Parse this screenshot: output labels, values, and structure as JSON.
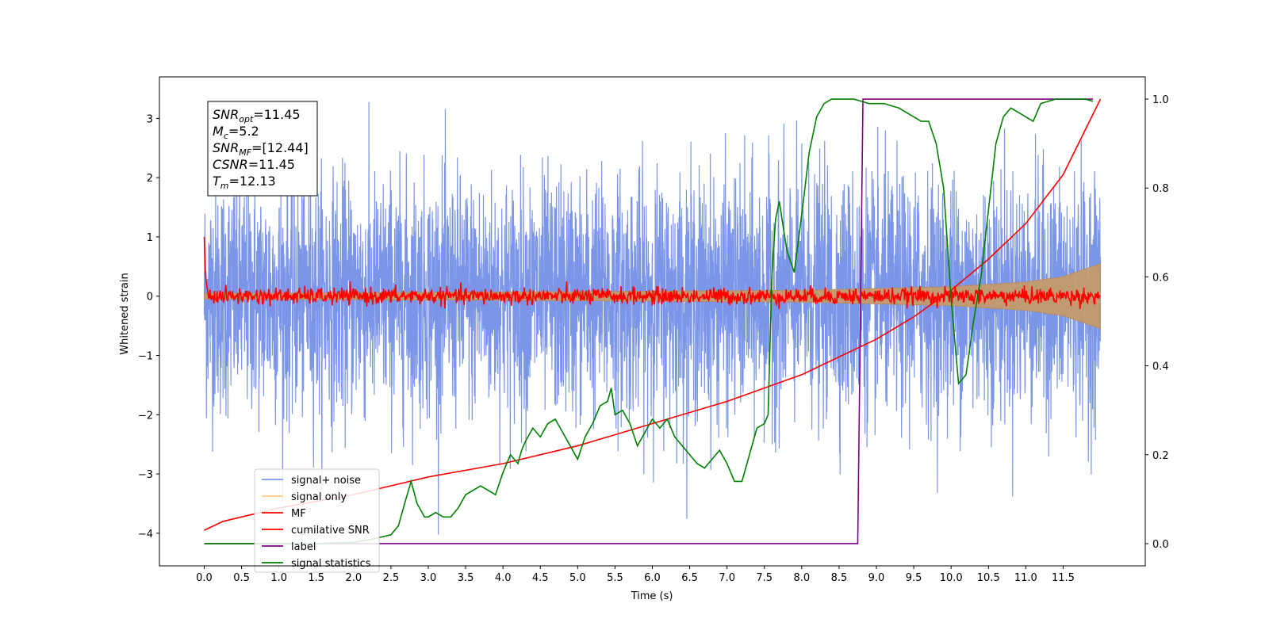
{
  "chart_data": {
    "type": "line",
    "xlabel": "Time (s)",
    "ylabel": "Whitened strain",
    "xlim": [
      -0.6,
      12.6
    ],
    "ylim": [
      -4.55,
      3.7
    ],
    "y2lim": [
      -0.05,
      1.05
    ],
    "x_ticks": [
      "0.0",
      "0.5",
      "1.0",
      "1.5",
      "2.0",
      "2.5",
      "3.0",
      "3.5",
      "4.0",
      "4.5",
      "5.0",
      "5.5",
      "6.0",
      "6.5",
      "7.0",
      "7.5",
      "8.0",
      "8.5",
      "9.0",
      "9.5",
      "10.0",
      "10.5",
      "11.0",
      "11.5"
    ],
    "y_ticks": [
      "3",
      "2",
      "1",
      "0",
      "−1",
      "−2",
      "−3",
      "−4"
    ],
    "y2_ticks": [
      "1.0",
      "0.8",
      "0.6",
      "0.4",
      "0.2",
      "0.0"
    ],
    "annotation": {
      "lines": [
        {
          "sym": "SNR",
          "sub": "opt",
          "val": "=11.45"
        },
        {
          "sym": "M",
          "sub": "c",
          "val": "=5.2"
        },
        {
          "sym": "SNR",
          "sub": "MF",
          "val": "=[12.44]"
        },
        {
          "sym": "CSNR",
          "sub": "",
          "val": "=11.45"
        },
        {
          "sym": "T",
          "sub": "m",
          "val": "=12.13"
        }
      ]
    },
    "legend": {
      "placement": "lower-left",
      "entries": [
        {
          "label": "signal+ noise",
          "color": "#7b96e8"
        },
        {
          "label": "signal only",
          "color": "#ffcc80"
        },
        {
          "label": "MF",
          "color": "#ff0000"
        },
        {
          "label": "cumilative SNR",
          "color": "#ff0000"
        },
        {
          "label": "label",
          "color": "#800080"
        },
        {
          "label": "signal statistics",
          "color": "#008000"
        }
      ]
    },
    "series": [
      {
        "name": "signal+ noise",
        "axis": "left",
        "color": "#7b96e8",
        "t_start": 0.0,
        "t_end": 12.0,
        "noise_sigma": 1.0
      },
      {
        "name": "signal only",
        "axis": "left",
        "color": "#c49a6c",
        "envelope": [
          [
            0.0,
            0.05
          ],
          [
            4.0,
            0.07
          ],
          [
            8.0,
            0.1
          ],
          [
            10.0,
            0.16
          ],
          [
            11.0,
            0.24
          ],
          [
            11.5,
            0.33
          ],
          [
            12.0,
            0.55
          ]
        ]
      },
      {
        "name": "MF",
        "axis": "left",
        "color": "#ff0000",
        "x": [
          0.0,
          0.02,
          0.05,
          0.1,
          12.0,
          12.01
        ],
        "y": [
          1.0,
          0.3,
          0.05,
          0.0,
          0.0,
          1.0
        ],
        "noise_sigma": 0.07
      },
      {
        "name": "cumilative SNR",
        "axis": "right",
        "color": "#ff0000",
        "x": [
          0.0,
          0.25,
          0.5,
          1.0,
          2.0,
          3.0,
          4.0,
          5.0,
          6.0,
          7.0,
          8.0,
          8.5,
          9.0,
          9.5,
          10.0,
          10.5,
          11.0,
          11.5,
          12.0
        ],
        "y": [
          0.03,
          0.05,
          0.06,
          0.08,
          0.11,
          0.15,
          0.18,
          0.22,
          0.27,
          0.32,
          0.38,
          0.42,
          0.46,
          0.51,
          0.57,
          0.64,
          0.72,
          0.83,
          1.0
        ]
      },
      {
        "name": "label",
        "axis": "right",
        "color": "#800080",
        "x": [
          0.0,
          8.75,
          8.82,
          11.9
        ],
        "y": [
          0.0,
          0.0,
          1.0,
          1.0
        ]
      },
      {
        "name": "signal statistics",
        "axis": "right",
        "color": "#008000",
        "x": [
          0.0,
          0.5,
          1.0,
          1.5,
          2.0,
          2.25,
          2.5,
          2.6,
          2.7,
          2.77,
          2.85,
          2.95,
          3.0,
          3.1,
          3.2,
          3.3,
          3.4,
          3.5,
          3.6,
          3.7,
          3.8,
          3.9,
          4.0,
          4.1,
          4.2,
          4.25,
          4.3,
          4.4,
          4.5,
          4.6,
          4.7,
          4.8,
          4.9,
          5.0,
          5.1,
          5.2,
          5.3,
          5.4,
          5.45,
          5.5,
          5.6,
          5.7,
          5.8,
          5.9,
          6.0,
          6.1,
          6.2,
          6.3,
          6.4,
          6.5,
          6.6,
          6.7,
          6.8,
          6.9,
          7.0,
          7.1,
          7.2,
          7.3,
          7.4,
          7.5,
          7.55,
          7.6,
          7.65,
          7.7,
          7.8,
          7.9,
          8.0,
          8.1,
          8.2,
          8.3,
          8.4,
          8.5,
          8.7,
          8.9,
          9.1,
          9.3,
          9.5,
          9.6,
          9.7,
          9.8,
          9.9,
          10.0,
          10.1,
          10.2,
          10.3,
          10.4,
          10.5,
          10.6,
          10.7,
          10.8,
          10.9,
          11.0,
          11.1,
          11.2,
          11.4,
          11.6,
          11.8,
          11.9
        ],
        "y": [
          0.0,
          0.0,
          0.0,
          0.0,
          0.003,
          0.01,
          0.02,
          0.04,
          0.1,
          0.14,
          0.09,
          0.06,
          0.06,
          0.07,
          0.06,
          0.06,
          0.08,
          0.11,
          0.12,
          0.13,
          0.12,
          0.11,
          0.16,
          0.2,
          0.18,
          0.21,
          0.23,
          0.26,
          0.24,
          0.27,
          0.28,
          0.25,
          0.22,
          0.19,
          0.24,
          0.27,
          0.31,
          0.32,
          0.35,
          0.29,
          0.3,
          0.27,
          0.22,
          0.25,
          0.28,
          0.26,
          0.28,
          0.24,
          0.22,
          0.2,
          0.18,
          0.17,
          0.19,
          0.21,
          0.18,
          0.14,
          0.14,
          0.2,
          0.26,
          0.27,
          0.29,
          0.6,
          0.73,
          0.77,
          0.66,
          0.61,
          0.74,
          0.88,
          0.96,
          0.99,
          1.0,
          1.0,
          1.0,
          0.99,
          0.99,
          0.98,
          0.96,
          0.95,
          0.95,
          0.9,
          0.8,
          0.55,
          0.36,
          0.38,
          0.5,
          0.6,
          0.75,
          0.9,
          0.96,
          0.98,
          0.97,
          0.96,
          0.95,
          0.99,
          1.0,
          1.0,
          1.0,
          0.995
        ]
      }
    ]
  }
}
